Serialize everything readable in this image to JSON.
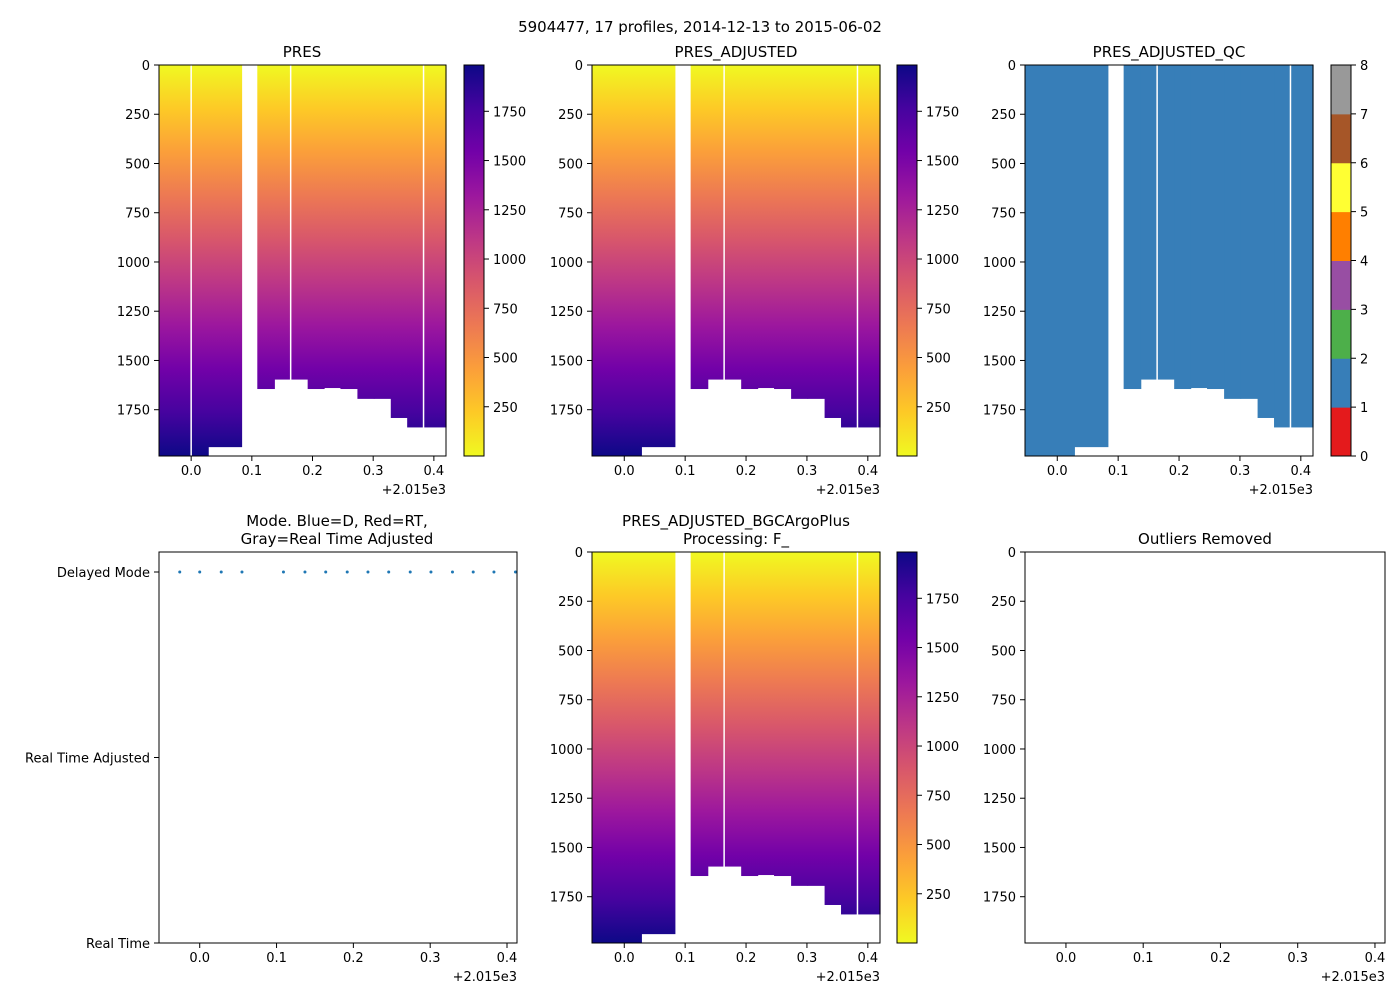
{
  "suptitle": "5904477, 17 profiles, 2014-12-13 to 2015-06-02",
  "x_axis": {
    "lim": [
      -0.053,
      0.42
    ],
    "ticks": [
      0.0,
      0.1,
      0.2,
      0.3,
      0.4
    ],
    "tick_labels": [
      "0.0",
      "0.1",
      "0.2",
      "0.3",
      "0.4"
    ],
    "offset": "+2.015e3"
  },
  "y_axis": {
    "lim": [
      0,
      1985
    ],
    "ticks": [
      0,
      250,
      500,
      750,
      1000,
      1250,
      1500,
      1750
    ],
    "tick_labels": [
      "0",
      "250",
      "500",
      "750",
      "1000",
      "1250",
      "1500",
      "1750"
    ]
  },
  "colors": {
    "plasma_stops": [
      "#0d0887",
      "#46039f",
      "#7201a8",
      "#9c179e",
      "#bd3786",
      "#d8576b",
      "#ed7953",
      "#fb9f3a",
      "#fdca26",
      "#f0f921"
    ],
    "qc": [
      "#e41a1c",
      "#377eb8",
      "#4daf4a",
      "#984ea3",
      "#ff7f00",
      "#ffff33",
      "#a65628",
      "#f781bf",
      "#999999"
    ],
    "mode_points": "#1f77b4"
  },
  "chart_data": [
    {
      "id": "pres",
      "type": "heatmap",
      "title": "PRES",
      "colormap": "plasma_r",
      "clim": [
        0,
        1985
      ],
      "colorbar_ticks": [
        250,
        500,
        750,
        1000,
        1250,
        1500,
        1750
      ],
      "colorbar_tick_labels": [
        "250",
        "500",
        "750",
        "1000",
        "1250",
        "1500",
        "1750"
      ],
      "profiles": [
        {
          "x0": -0.053,
          "x1": 0.0,
          "max_depth": 1985
        },
        {
          "x0": 0.0,
          "x1": 0.028,
          "max_depth": 1985
        },
        {
          "x0": 0.028,
          "x1": 0.083,
          "max_depth": 1940
        },
        {
          "x0": 0.109,
          "x1": 0.137,
          "max_depth": 1645
        },
        {
          "x0": 0.137,
          "x1": 0.164,
          "max_depth": 1597
        },
        {
          "x0": 0.164,
          "x1": 0.192,
          "max_depth": 1597
        },
        {
          "x0": 0.192,
          "x1": 0.219,
          "max_depth": 1645
        },
        {
          "x0": 0.219,
          "x1": 0.246,
          "max_depth": 1640
        },
        {
          "x0": 0.246,
          "x1": 0.274,
          "max_depth": 1645
        },
        {
          "x0": 0.274,
          "x1": 0.301,
          "max_depth": 1695
        },
        {
          "x0": 0.301,
          "x1": 0.329,
          "max_depth": 1695
        },
        {
          "x0": 0.329,
          "x1": 0.356,
          "max_depth": 1792
        },
        {
          "x0": 0.356,
          "x1": 0.383,
          "max_depth": 1840
        },
        {
          "x0": 0.383,
          "x1": 0.42,
          "max_depth": 1840
        }
      ],
      "white_lines": [
        0.0,
        0.164,
        0.383
      ]
    },
    {
      "id": "pres_adjusted",
      "type": "heatmap",
      "title": "PRES_ADJUSTED",
      "colormap": "plasma_r",
      "clim": [
        0,
        1985
      ],
      "colorbar_ticks": [
        250,
        500,
        750,
        1000,
        1250,
        1500,
        1750
      ],
      "colorbar_tick_labels": [
        "250",
        "500",
        "750",
        "1000",
        "1250",
        "1500",
        "1750"
      ],
      "profiles": [
        {
          "x0": -0.053,
          "x1": 0.028,
          "max_depth": 1985
        },
        {
          "x0": 0.028,
          "x1": 0.083,
          "max_depth": 1940
        },
        {
          "x0": 0.109,
          "x1": 0.137,
          "max_depth": 1645
        },
        {
          "x0": 0.137,
          "x1": 0.164,
          "max_depth": 1597
        },
        {
          "x0": 0.164,
          "x1": 0.192,
          "max_depth": 1597
        },
        {
          "x0": 0.192,
          "x1": 0.219,
          "max_depth": 1645
        },
        {
          "x0": 0.219,
          "x1": 0.246,
          "max_depth": 1640
        },
        {
          "x0": 0.246,
          "x1": 0.274,
          "max_depth": 1645
        },
        {
          "x0": 0.274,
          "x1": 0.301,
          "max_depth": 1695
        },
        {
          "x0": 0.301,
          "x1": 0.329,
          "max_depth": 1695
        },
        {
          "x0": 0.329,
          "x1": 0.356,
          "max_depth": 1792
        },
        {
          "x0": 0.356,
          "x1": 0.383,
          "max_depth": 1840
        },
        {
          "x0": 0.383,
          "x1": 0.42,
          "max_depth": 1840
        }
      ],
      "white_lines": [
        0.164,
        0.383
      ]
    },
    {
      "id": "pres_adjusted_qc",
      "type": "heatmap",
      "title": "PRES_ADJUSTED_QC",
      "colormap": "qc",
      "qc_value": 1,
      "clim": [
        0,
        8
      ],
      "colorbar_ticks": [
        0,
        1,
        2,
        3,
        4,
        5,
        6,
        7,
        8
      ],
      "colorbar_tick_labels": [
        "0",
        "1",
        "2",
        "3",
        "4",
        "5",
        "6",
        "7",
        "8"
      ],
      "profiles": [
        {
          "x0": -0.053,
          "x1": 0.028,
          "max_depth": 1985
        },
        {
          "x0": 0.028,
          "x1": 0.083,
          "max_depth": 1940
        },
        {
          "x0": 0.109,
          "x1": 0.137,
          "max_depth": 1645
        },
        {
          "x0": 0.137,
          "x1": 0.164,
          "max_depth": 1597
        },
        {
          "x0": 0.164,
          "x1": 0.192,
          "max_depth": 1597
        },
        {
          "x0": 0.192,
          "x1": 0.219,
          "max_depth": 1645
        },
        {
          "x0": 0.219,
          "x1": 0.246,
          "max_depth": 1640
        },
        {
          "x0": 0.246,
          "x1": 0.274,
          "max_depth": 1645
        },
        {
          "x0": 0.274,
          "x1": 0.301,
          "max_depth": 1695
        },
        {
          "x0": 0.301,
          "x1": 0.329,
          "max_depth": 1695
        },
        {
          "x0": 0.329,
          "x1": 0.356,
          "max_depth": 1792
        },
        {
          "x0": 0.356,
          "x1": 0.383,
          "max_depth": 1840
        },
        {
          "x0": 0.383,
          "x1": 0.42,
          "max_depth": 1840
        }
      ],
      "white_lines": [
        0.164,
        0.383
      ]
    },
    {
      "id": "mode",
      "type": "scatter",
      "title_lines": [
        "Mode. Blue=D, Red=RT,",
        "Gray=Real Time Adjusted"
      ],
      "x_lim": [
        -0.053,
        0.413
      ],
      "categories": [
        "Real Time",
        "Real Time Adjusted",
        "Delayed Mode"
      ],
      "points": [
        {
          "x": -0.026,
          "mode": "Delayed Mode"
        },
        {
          "x": 0.0,
          "mode": "Delayed Mode"
        },
        {
          "x": 0.028,
          "mode": "Delayed Mode"
        },
        {
          "x": 0.055,
          "mode": "Delayed Mode"
        },
        {
          "x": 0.109,
          "mode": "Delayed Mode"
        },
        {
          "x": 0.137,
          "mode": "Delayed Mode"
        },
        {
          "x": 0.164,
          "mode": "Delayed Mode"
        },
        {
          "x": 0.192,
          "mode": "Delayed Mode"
        },
        {
          "x": 0.219,
          "mode": "Delayed Mode"
        },
        {
          "x": 0.246,
          "mode": "Delayed Mode"
        },
        {
          "x": 0.274,
          "mode": "Delayed Mode"
        },
        {
          "x": 0.301,
          "mode": "Delayed Mode"
        },
        {
          "x": 0.329,
          "mode": "Delayed Mode"
        },
        {
          "x": 0.356,
          "mode": "Delayed Mode"
        },
        {
          "x": 0.383,
          "mode": "Delayed Mode"
        },
        {
          "x": 0.411,
          "mode": "Delayed Mode"
        }
      ]
    },
    {
      "id": "pres_bgc",
      "type": "heatmap",
      "title_lines": [
        "PRES_ADJUSTED_BGCArgoPlus",
        "Processing: F_"
      ],
      "colormap": "plasma_r",
      "clim": [
        0,
        1985
      ],
      "colorbar_ticks": [
        250,
        500,
        750,
        1000,
        1250,
        1500,
        1750
      ],
      "colorbar_tick_labels": [
        "250",
        "500",
        "750",
        "1000",
        "1250",
        "1500",
        "1750"
      ],
      "profiles": [
        {
          "x0": -0.053,
          "x1": 0.028,
          "max_depth": 1985
        },
        {
          "x0": 0.028,
          "x1": 0.083,
          "max_depth": 1940
        },
        {
          "x0": 0.109,
          "x1": 0.137,
          "max_depth": 1645
        },
        {
          "x0": 0.137,
          "x1": 0.164,
          "max_depth": 1597
        },
        {
          "x0": 0.164,
          "x1": 0.192,
          "max_depth": 1597
        },
        {
          "x0": 0.192,
          "x1": 0.219,
          "max_depth": 1645
        },
        {
          "x0": 0.219,
          "x1": 0.246,
          "max_depth": 1640
        },
        {
          "x0": 0.246,
          "x1": 0.274,
          "max_depth": 1645
        },
        {
          "x0": 0.274,
          "x1": 0.301,
          "max_depth": 1695
        },
        {
          "x0": 0.301,
          "x1": 0.329,
          "max_depth": 1695
        },
        {
          "x0": 0.329,
          "x1": 0.356,
          "max_depth": 1792
        },
        {
          "x0": 0.356,
          "x1": 0.383,
          "max_depth": 1840
        },
        {
          "x0": 0.383,
          "x1": 0.42,
          "max_depth": 1840
        }
      ],
      "white_lines": [
        0.164,
        0.383
      ]
    },
    {
      "id": "outliers",
      "type": "scatter",
      "title": "Outliers Removed",
      "x_lim": [
        -0.053,
        0.413
      ],
      "points": []
    }
  ]
}
